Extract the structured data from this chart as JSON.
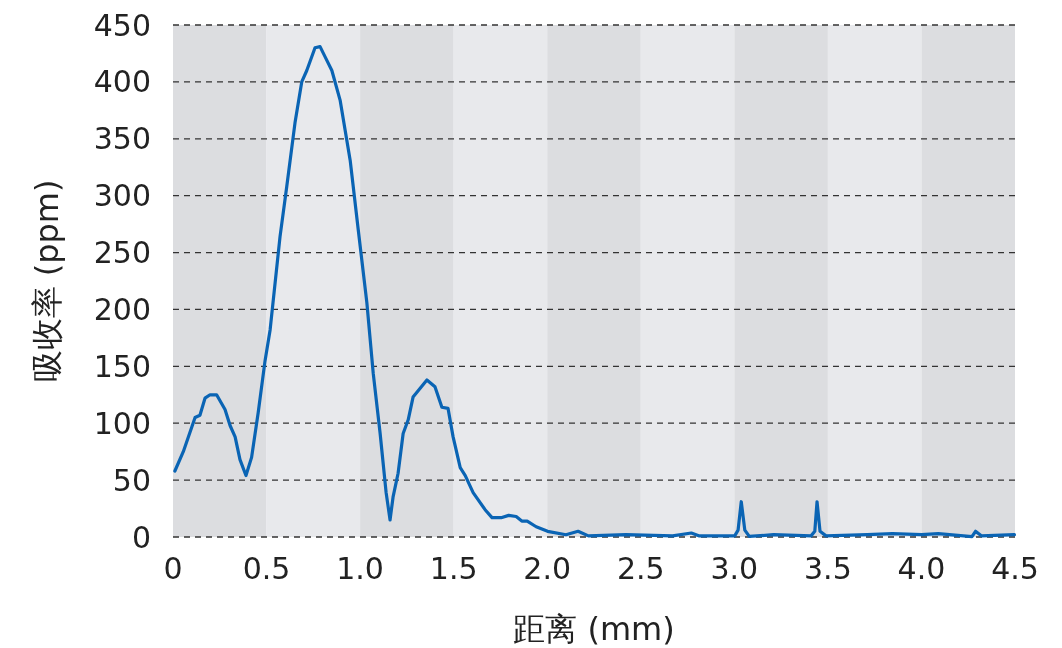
{
  "chart_data": {
    "type": "line",
    "xlabel": "距离 (mm)",
    "ylabel": "吸收率 (ppm)",
    "x": [
      0.01,
      0.055,
      0.118,
      0.144,
      0.171,
      0.198,
      0.233,
      0.278,
      0.305,
      0.332,
      0.358,
      0.39,
      0.42,
      0.455,
      0.492,
      0.519,
      0.572,
      0.608,
      0.652,
      0.688,
      0.715,
      0.759,
      0.786,
      0.813,
      0.849,
      0.893,
      0.947,
      0.99,
      1.036,
      1.07,
      1.107,
      1.139,
      1.16,
      1.176,
      1.203,
      1.23,
      1.257,
      1.283,
      1.357,
      1.4,
      1.437,
      1.47,
      1.497,
      1.535,
      1.562,
      1.604,
      1.668,
      1.705,
      1.754,
      1.794,
      1.834,
      1.864,
      1.893,
      1.941,
      2.002,
      2.1,
      2.165,
      2.22,
      2.42,
      2.67,
      2.77,
      2.81,
      3.002,
      3.02,
      3.037,
      3.056,
      3.08,
      3.21,
      3.41,
      3.43,
      3.442,
      3.458,
      3.49,
      3.71,
      3.845,
      4.0,
      4.09,
      4.27,
      4.289,
      4.32,
      4.497
    ],
    "series": [
      {
        "color": "#0a64b4",
        "values": [
          58,
          75,
          105,
          107,
          122,
          125,
          125,
          112,
          98,
          88,
          68,
          54,
          70,
          109,
          155,
          182,
          264,
          308,
          364,
          400,
          410,
          430,
          431,
          422,
          410,
          384,
          331,
          270,
          206,
          144,
          91,
          39,
          15,
          35,
          56,
          91,
          103,
          123,
          138,
          132,
          114,
          113,
          88,
          61,
          54,
          39,
          24,
          17,
          17,
          19,
          18,
          14,
          14,
          9,
          5,
          2,
          5,
          1,
          2,
          1,
          3.5,
          1,
          1,
          6,
          31,
          6,
          0.5,
          2,
          1,
          5,
          31,
          5,
          1,
          2,
          3,
          2,
          3,
          0.3,
          5,
          1,
          2
        ]
      }
    ],
    "xlim": [
      0,
      4.5
    ],
    "ylim": [
      0,
      450
    ],
    "xticks": [
      0,
      0.5,
      {
        "value": 1,
        "label": "1.0"
      },
      1.5,
      {
        "value": 2,
        "label": "2.0"
      },
      2.5,
      {
        "value": 3,
        "label": "3.0"
      },
      3.5,
      {
        "value": 4,
        "label": "4.0"
      },
      4.5
    ],
    "yticks": [
      0,
      50,
      100,
      150,
      200,
      250,
      300,
      350,
      400,
      450
    ],
    "grid": "y",
    "line_style": "solid",
    "marker": "none",
    "bands": [
      {
        "axis": "x",
        "from": 0,
        "to": 0.5,
        "color": "#dcdde0"
      },
      {
        "axis": "x",
        "from": 0.5,
        "to": 1,
        "color": "#e8e9ec"
      },
      {
        "axis": "x",
        "from": 1,
        "to": 1.5,
        "color": "#dcdde0"
      },
      {
        "axis": "x",
        "from": 1.5,
        "to": 2,
        "color": "#e8e9ec"
      },
      {
        "axis": "x",
        "from": 2,
        "to": 2.5,
        "color": "#dcdde0"
      },
      {
        "axis": "x",
        "from": 2.5,
        "to": 3,
        "color": "#e8e9ec"
      },
      {
        "axis": "x",
        "from": 3,
        "to": 3.5,
        "color": "#dcdde0"
      },
      {
        "axis": "x",
        "from": 3.5,
        "to": 4,
        "color": "#e8e9ec"
      },
      {
        "axis": "x",
        "from": 4,
        "to": 4.5,
        "color": "#dcdde0"
      }
    ]
  }
}
